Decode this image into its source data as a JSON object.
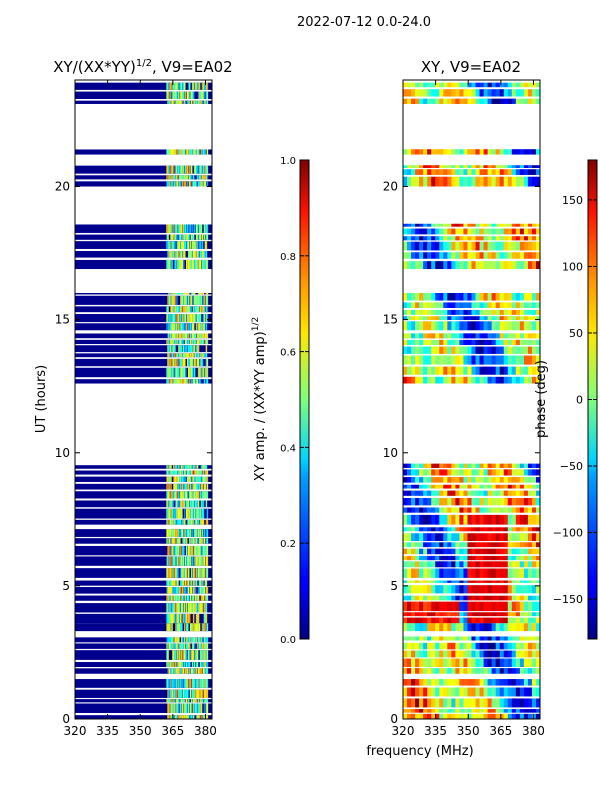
{
  "figure": {
    "suptitle": "2022-07-12 0.0-24.0",
    "shared_xlabel": "frequency (MHz)"
  },
  "chart_data": [
    {
      "type": "heatmap",
      "title": "XY/(XX*YY)",
      "title_exponent": "1/2",
      "title_suffix": ", V9=EA02",
      "xlabel": "frequency (MHz)",
      "ylabel": "UT (hours)",
      "xlim": [
        320,
        383
      ],
      "ylim": [
        0,
        24
      ],
      "xticks": [
        320,
        335,
        350,
        365,
        380
      ],
      "yticks": [
        0,
        5,
        10,
        15,
        20
      ],
      "colorbar": {
        "label": "XY amp. / (XX*YY amp)",
        "label_exponent": "1/2",
        "range": [
          0.0,
          1.0
        ],
        "ticks": [
          "0.0",
          "0.2",
          "0.4",
          "0.6",
          "0.8",
          "1.0"
        ],
        "colormap": "jet"
      },
      "data_time_ranges_hours": [
        [
          0.0,
          1.5
        ],
        [
          1.7,
          3.1
        ],
        [
          3.3,
          3.6
        ],
        [
          3.6,
          5.2
        ],
        [
          5.3,
          7.2
        ],
        [
          7.3,
          9.6
        ],
        [
          12.6,
          14.5
        ],
        [
          14.6,
          16.0
        ],
        [
          16.9,
          18.6
        ],
        [
          21.2,
          21.4
        ],
        [
          20.0,
          20.8
        ],
        [
          23.1,
          23.9
        ]
      ],
      "description_values": {
        "low_band_320_362MHz": 0.05,
        "high_band_362_380MHz": 0.45
      }
    },
    {
      "type": "heatmap",
      "title": "XY, V9=EA02",
      "xlabel": "frequency (MHz)",
      "ylabel": "",
      "xlim": [
        320,
        383
      ],
      "ylim": [
        0,
        24
      ],
      "xticks": [
        320,
        335,
        350,
        365,
        380
      ],
      "yticks": [
        0,
        5,
        10,
        15,
        20
      ],
      "colorbar": {
        "label": "phase (deg)",
        "range": [
          -180,
          180
        ],
        "ticks": [
          "150",
          "100",
          "50",
          "0",
          "−50",
          "−100",
          "−150"
        ],
        "colormap": "jet"
      },
      "data_time_ranges_hours": [
        [
          0.0,
          1.5
        ],
        [
          1.7,
          3.1
        ],
        [
          3.3,
          3.6
        ],
        [
          3.6,
          5.2
        ],
        [
          5.3,
          7.2
        ],
        [
          7.3,
          9.6
        ],
        [
          12.6,
          14.5
        ],
        [
          14.6,
          16.0
        ],
        [
          16.9,
          18.6
        ],
        [
          21.2,
          21.4
        ],
        [
          20.0,
          20.8
        ],
        [
          23.1,
          23.9
        ]
      ]
    }
  ]
}
